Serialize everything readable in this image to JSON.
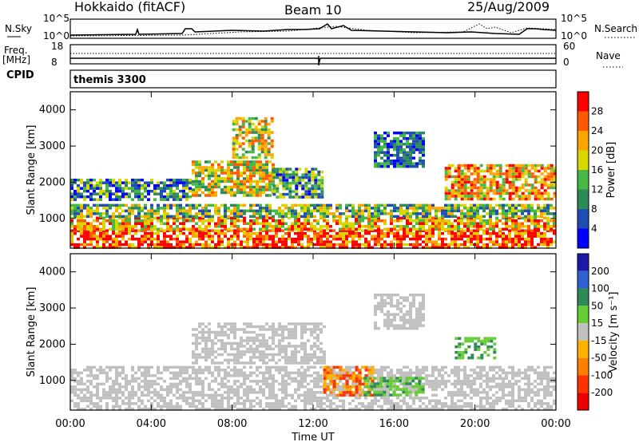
{
  "header": {
    "site": "Hokkaido (fitACF)",
    "beam": "Beam 10",
    "date": "25/Aug/2009"
  },
  "status_panel": {
    "nsky_label": "N.Sky",
    "nsky_ticks": [
      "10^5",
      "10^0"
    ],
    "nsearch_label": "N.Search",
    "nsearch_ticks": [
      "10^5",
      "10^0"
    ],
    "freq_label": "Freq.",
    "freq_unit": "[MHz]",
    "freq_ticks": [
      "18",
      "8"
    ],
    "nave_label": "Nave",
    "nave_ticks": [
      "60",
      "0"
    ],
    "cpid_label": "CPID",
    "cpid_value": "themis 3300"
  },
  "colors": {
    "power": [
      "#0000ff",
      "#1f4db3",
      "#2e8b57",
      "#45b845",
      "#d8d800",
      "#ffa500",
      "#ff5a00",
      "#ff0000"
    ],
    "velocity": [
      "#1a1aaa",
      "#2f5fd0",
      "#2e8b57",
      "#66cc33",
      "#c0c0c0",
      "#ffb000",
      "#ff7f00",
      "#ff3300",
      "#ee0000"
    ],
    "ground_scatter": "#c0c0c0"
  },
  "chart_data": [
    {
      "type": "heatmap",
      "title": "Power",
      "xlabel": "",
      "ylabel": "Slant Range [km]",
      "x_range_hours": [
        0,
        24
      ],
      "ylim_km": [
        180,
        4500
      ],
      "y_ticks": [
        "1000",
        "2000",
        "3000",
        "4000"
      ],
      "colorbar_label": "Power [dB]",
      "colorbar_ticks": [
        "4",
        "8",
        "12",
        "16",
        "20",
        "24",
        "28"
      ],
      "regions": [
        {
          "t": [
            0,
            24
          ],
          "r": [
            200,
            700
          ],
          "level": "strong-red"
        },
        {
          "t": [
            0,
            24
          ],
          "r": [
            700,
            1050
          ],
          "level": "mixed-orange-yellow"
        },
        {
          "t": [
            0,
            24
          ],
          "r": [
            1050,
            1400
          ],
          "level": "mixed-green-yellow"
        },
        {
          "t": [
            0,
            6
          ],
          "r": [
            1500,
            2100
          ],
          "level": "mixed-green-blue"
        },
        {
          "t": [
            6,
            10
          ],
          "r": [
            1600,
            2600
          ],
          "level": "mixed-orange-green"
        },
        {
          "t": [
            8,
            10
          ],
          "r": [
            2700,
            3800
          ],
          "level": "mixed-orange-green"
        },
        {
          "t": [
            10,
            12.5
          ],
          "r": [
            1600,
            2400
          ],
          "level": "mixed-green-blue"
        },
        {
          "t": [
            15,
            17.5
          ],
          "r": [
            2400,
            3400
          ],
          "level": "mixed-blue-green"
        },
        {
          "t": [
            18.5,
            24
          ],
          "r": [
            1500,
            2500
          ],
          "level": "mixed-red-orange"
        }
      ]
    },
    {
      "type": "heatmap",
      "title": "Velocity",
      "xlabel": "Time UT",
      "ylabel": "Slant Range [km]",
      "x_range_hours": [
        0,
        24
      ],
      "x_ticks": [
        "00:00",
        "04:00",
        "08:00",
        "12:00",
        "16:00",
        "20:00",
        "00:00"
      ],
      "ylim_km": [
        180,
        4500
      ],
      "y_ticks": [
        "1000",
        "2000",
        "3000",
        "4000"
      ],
      "colorbar_label": "Velocity [m s⁻¹]",
      "colorbar_ticks": [
        "200",
        "100",
        "50",
        "15",
        "-15",
        "-50",
        "-100",
        "-200"
      ],
      "regions": [
        {
          "t": [
            0,
            24
          ],
          "r": [
            200,
            1400
          ],
          "level": "ground-scatter"
        },
        {
          "t": [
            6,
            12.5
          ],
          "r": [
            1500,
            2600
          ],
          "level": "ground-scatter"
        },
        {
          "t": [
            12.5,
            15
          ],
          "r": [
            600,
            1400
          ],
          "level": "negative-orange"
        },
        {
          "t": [
            14.5,
            17.5
          ],
          "r": [
            600,
            1100
          ],
          "level": "positive-green"
        },
        {
          "t": [
            15,
            17.5
          ],
          "r": [
            2400,
            3400
          ],
          "level": "ground-scatter"
        },
        {
          "t": [
            19,
            21
          ],
          "r": [
            1600,
            2200
          ],
          "level": "positive-green"
        }
      ]
    }
  ]
}
